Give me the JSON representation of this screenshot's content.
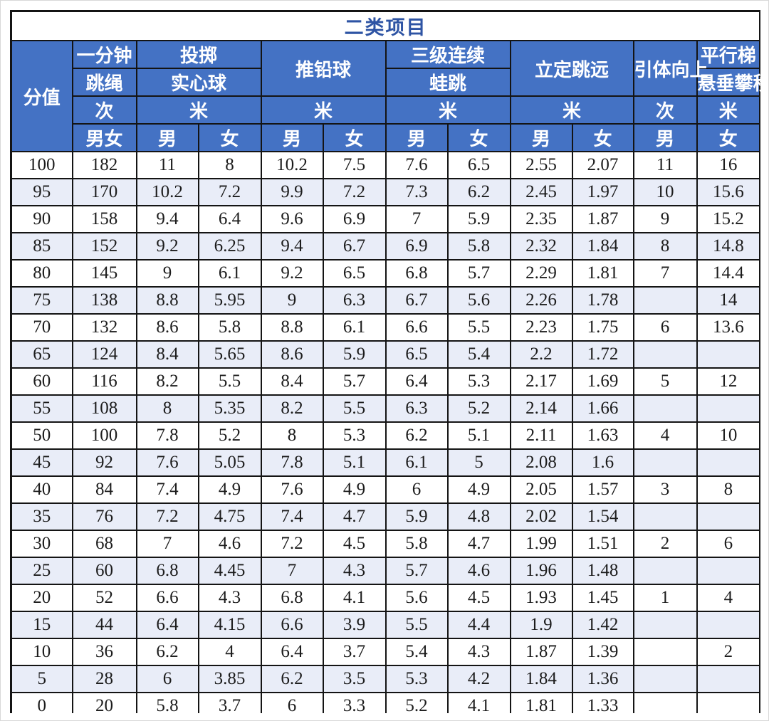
{
  "title": "二类项目",
  "table": {
    "header": {
      "score_label": "分值",
      "rope": {
        "line1": "一分钟",
        "line2": "跳绳",
        "unit": "次",
        "gender": "男女"
      },
      "throw": {
        "line1": "投掷",
        "line2": "实心球",
        "unit": "米",
        "m": "男",
        "f": "女"
      },
      "shot": {
        "name": "推铅球",
        "unit": "米",
        "m": "男",
        "f": "女"
      },
      "frog": {
        "line1": "三级连续",
        "line2": "蛙跳",
        "unit": "米",
        "m": "男",
        "f": "女"
      },
      "jump": {
        "name": "立定跳远",
        "unit": "米",
        "m": "男",
        "f": "女"
      },
      "pullup": {
        "name": "引体向上",
        "unit": "次",
        "m": "男"
      },
      "ladder": {
        "line1": "平行梯",
        "line2": "悬垂攀移",
        "unit": "米",
        "f": "女"
      }
    },
    "columns": [
      "score",
      "rope",
      "throw-male",
      "throw-female",
      "shot-male",
      "shot-female",
      "frog-male",
      "frog-female",
      "jump-male",
      "jump-female",
      "pullup-male",
      "ladder-female"
    ],
    "rows": [
      [
        "100",
        "182",
        "11",
        "8",
        "10.2",
        "7.5",
        "7.6",
        "6.5",
        "2.55",
        "2.07",
        "11",
        "16"
      ],
      [
        "95",
        "170",
        "10.2",
        "7.2",
        "9.9",
        "7.2",
        "7.3",
        "6.2",
        "2.45",
        "1.97",
        "10",
        "15.6"
      ],
      [
        "90",
        "158",
        "9.4",
        "6.4",
        "9.6",
        "6.9",
        "7",
        "5.9",
        "2.35",
        "1.87",
        "9",
        "15.2"
      ],
      [
        "85",
        "152",
        "9.2",
        "6.25",
        "9.4",
        "6.7",
        "6.9",
        "5.8",
        "2.32",
        "1.84",
        "8",
        "14.8"
      ],
      [
        "80",
        "145",
        "9",
        "6.1",
        "9.2",
        "6.5",
        "6.8",
        "5.7",
        "2.29",
        "1.81",
        "7",
        "14.4"
      ],
      [
        "75",
        "138",
        "8.8",
        "5.95",
        "9",
        "6.3",
        "6.7",
        "5.6",
        "2.26",
        "1.78",
        "",
        "14"
      ],
      [
        "70",
        "132",
        "8.6",
        "5.8",
        "8.8",
        "6.1",
        "6.6",
        "5.5",
        "2.23",
        "1.75",
        "6",
        "13.6"
      ],
      [
        "65",
        "124",
        "8.4",
        "5.65",
        "8.6",
        "5.9",
        "6.5",
        "5.4",
        "2.2",
        "1.72",
        "",
        ""
      ],
      [
        "60",
        "116",
        "8.2",
        "5.5",
        "8.4",
        "5.7",
        "6.4",
        "5.3",
        "2.17",
        "1.69",
        "5",
        "12"
      ],
      [
        "55",
        "108",
        "8",
        "5.35",
        "8.2",
        "5.5",
        "6.3",
        "5.2",
        "2.14",
        "1.66",
        "",
        ""
      ],
      [
        "50",
        "100",
        "7.8",
        "5.2",
        "8",
        "5.3",
        "6.2",
        "5.1",
        "2.11",
        "1.63",
        "4",
        "10"
      ],
      [
        "45",
        "92",
        "7.6",
        "5.05",
        "7.8",
        "5.1",
        "6.1",
        "5",
        "2.08",
        "1.6",
        "",
        ""
      ],
      [
        "40",
        "84",
        "7.4",
        "4.9",
        "7.6",
        "4.9",
        "6",
        "4.9",
        "2.05",
        "1.57",
        "3",
        "8"
      ],
      [
        "35",
        "76",
        "7.2",
        "4.75",
        "7.4",
        "4.7",
        "5.9",
        "4.8",
        "2.02",
        "1.54",
        "",
        ""
      ],
      [
        "30",
        "68",
        "7",
        "4.6",
        "7.2",
        "4.5",
        "5.8",
        "4.7",
        "1.99",
        "1.51",
        "2",
        "6"
      ],
      [
        "25",
        "60",
        "6.8",
        "4.45",
        "7",
        "4.3",
        "5.7",
        "4.6",
        "1.96",
        "1.48",
        "",
        ""
      ],
      [
        "20",
        "52",
        "6.6",
        "4.3",
        "6.8",
        "4.1",
        "5.6",
        "4.5",
        "1.93",
        "1.45",
        "1",
        "4"
      ],
      [
        "15",
        "44",
        "6.4",
        "4.15",
        "6.6",
        "3.9",
        "5.5",
        "4.4",
        "1.9",
        "1.42",
        "",
        ""
      ],
      [
        "10",
        "36",
        "6.2",
        "4",
        "6.4",
        "3.7",
        "5.4",
        "4.3",
        "1.87",
        "1.39",
        "",
        "2"
      ],
      [
        "5",
        "28",
        "6",
        "3.85",
        "6.2",
        "3.5",
        "5.3",
        "4.2",
        "1.84",
        "1.36",
        "",
        ""
      ],
      [
        "0",
        "20",
        "5.8",
        "3.7",
        "6",
        "3.3",
        "5.2",
        "4.1",
        "1.81",
        "1.33",
        "",
        ""
      ]
    ]
  },
  "colors": {
    "header_bg": "#4472c4",
    "stripe_bg": "#e9edf8",
    "title_text": "#2e54a4",
    "border": "#141414",
    "header_text": "#ffffff",
    "data_text": "#1c1c1c"
  }
}
